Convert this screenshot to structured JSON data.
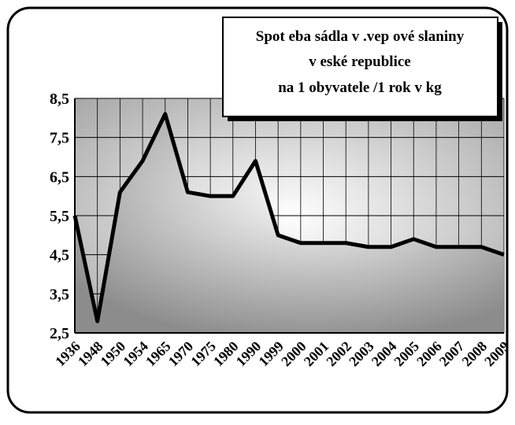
{
  "chart_data": {
    "type": "area",
    "title": [
      "Spot eba sádla v .vep ové slaniny",
      "v   eské republice",
      "na 1 obyvatele /1 rok v kg"
    ],
    "categories": [
      "1936",
      "1948",
      "1950",
      "1954",
      "1965",
      "1970",
      "1975",
      "1980",
      "1990",
      "1999",
      "2000",
      "2001",
      "2002",
      "2003",
      "2004",
      "2005",
      "2006",
      "2007",
      "2008",
      "2009"
    ],
    "values": [
      5.5,
      2.8,
      6.1,
      6.9,
      8.1,
      6.1,
      6.0,
      6.0,
      6.9,
      5.0,
      4.8,
      4.8,
      4.8,
      4.7,
      4.7,
      4.9,
      4.7,
      4.7,
      4.7,
      4.5
    ],
    "color": "#000000",
    "ylim": [
      2.5,
      8.5
    ],
    "yticks": [
      {
        "value": 2.5,
        "label": "2,5"
      },
      {
        "value": 3.5,
        "label": "3,5"
      },
      {
        "value": 4.5,
        "label": "4,5"
      },
      {
        "value": 5.5,
        "label": "5,5"
      },
      {
        "value": 6.5,
        "label": "6,5"
      },
      {
        "value": 7.5,
        "label": "7,5"
      },
      {
        "value": 8.5,
        "label": "8,5"
      }
    ],
    "grid": true
  }
}
